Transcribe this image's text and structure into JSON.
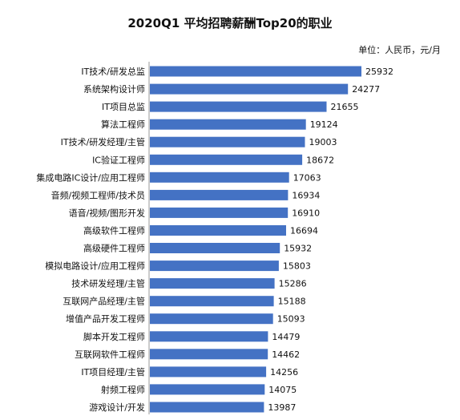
{
  "chart_data": {
    "type": "bar",
    "orientation": "horizontal",
    "title": "2020Q1 平均招聘薪酬Top20的职业",
    "unit_note": "单位：人民币，元/月",
    "categories": [
      "IT技术/研发总监",
      "系统架构设计师",
      "IT项目总监",
      "算法工程师",
      "IT技术/研发经理/主管",
      "IC验证工程师",
      "集成电路IC设计/应用工程师",
      "音频/视频工程师/技术员",
      "语音/视频/图形开发",
      "高级软件工程师",
      "高级硬件工程师",
      "模拟电路设计/应用工程师",
      "技术研发经理/主管",
      "互联网产品经理/主管",
      "增值产品开发工程师",
      "脚本开发工程师",
      "互联网软件工程师",
      "IT项目经理/主管",
      "射频工程师",
      "游戏设计/开发"
    ],
    "values": [
      25932,
      24277,
      21655,
      19124,
      19003,
      18672,
      17063,
      16934,
      16910,
      16694,
      15932,
      15803,
      15286,
      15188,
      15093,
      14479,
      14462,
      14256,
      14075,
      13987
    ],
    "value_labels": [
      "25932",
      "24277",
      "21655",
      "19124",
      "19003",
      "18672",
      "17063",
      "16934",
      "16910",
      "16694",
      "15932",
      "15803",
      "15286",
      "15188",
      "15093",
      "14479",
      "14462",
      "14256",
      "14075",
      "13987"
    ],
    "xlim": [
      0,
      25932
    ],
    "bar_color": "#4472c4",
    "grid": false,
    "legend": "none"
  }
}
